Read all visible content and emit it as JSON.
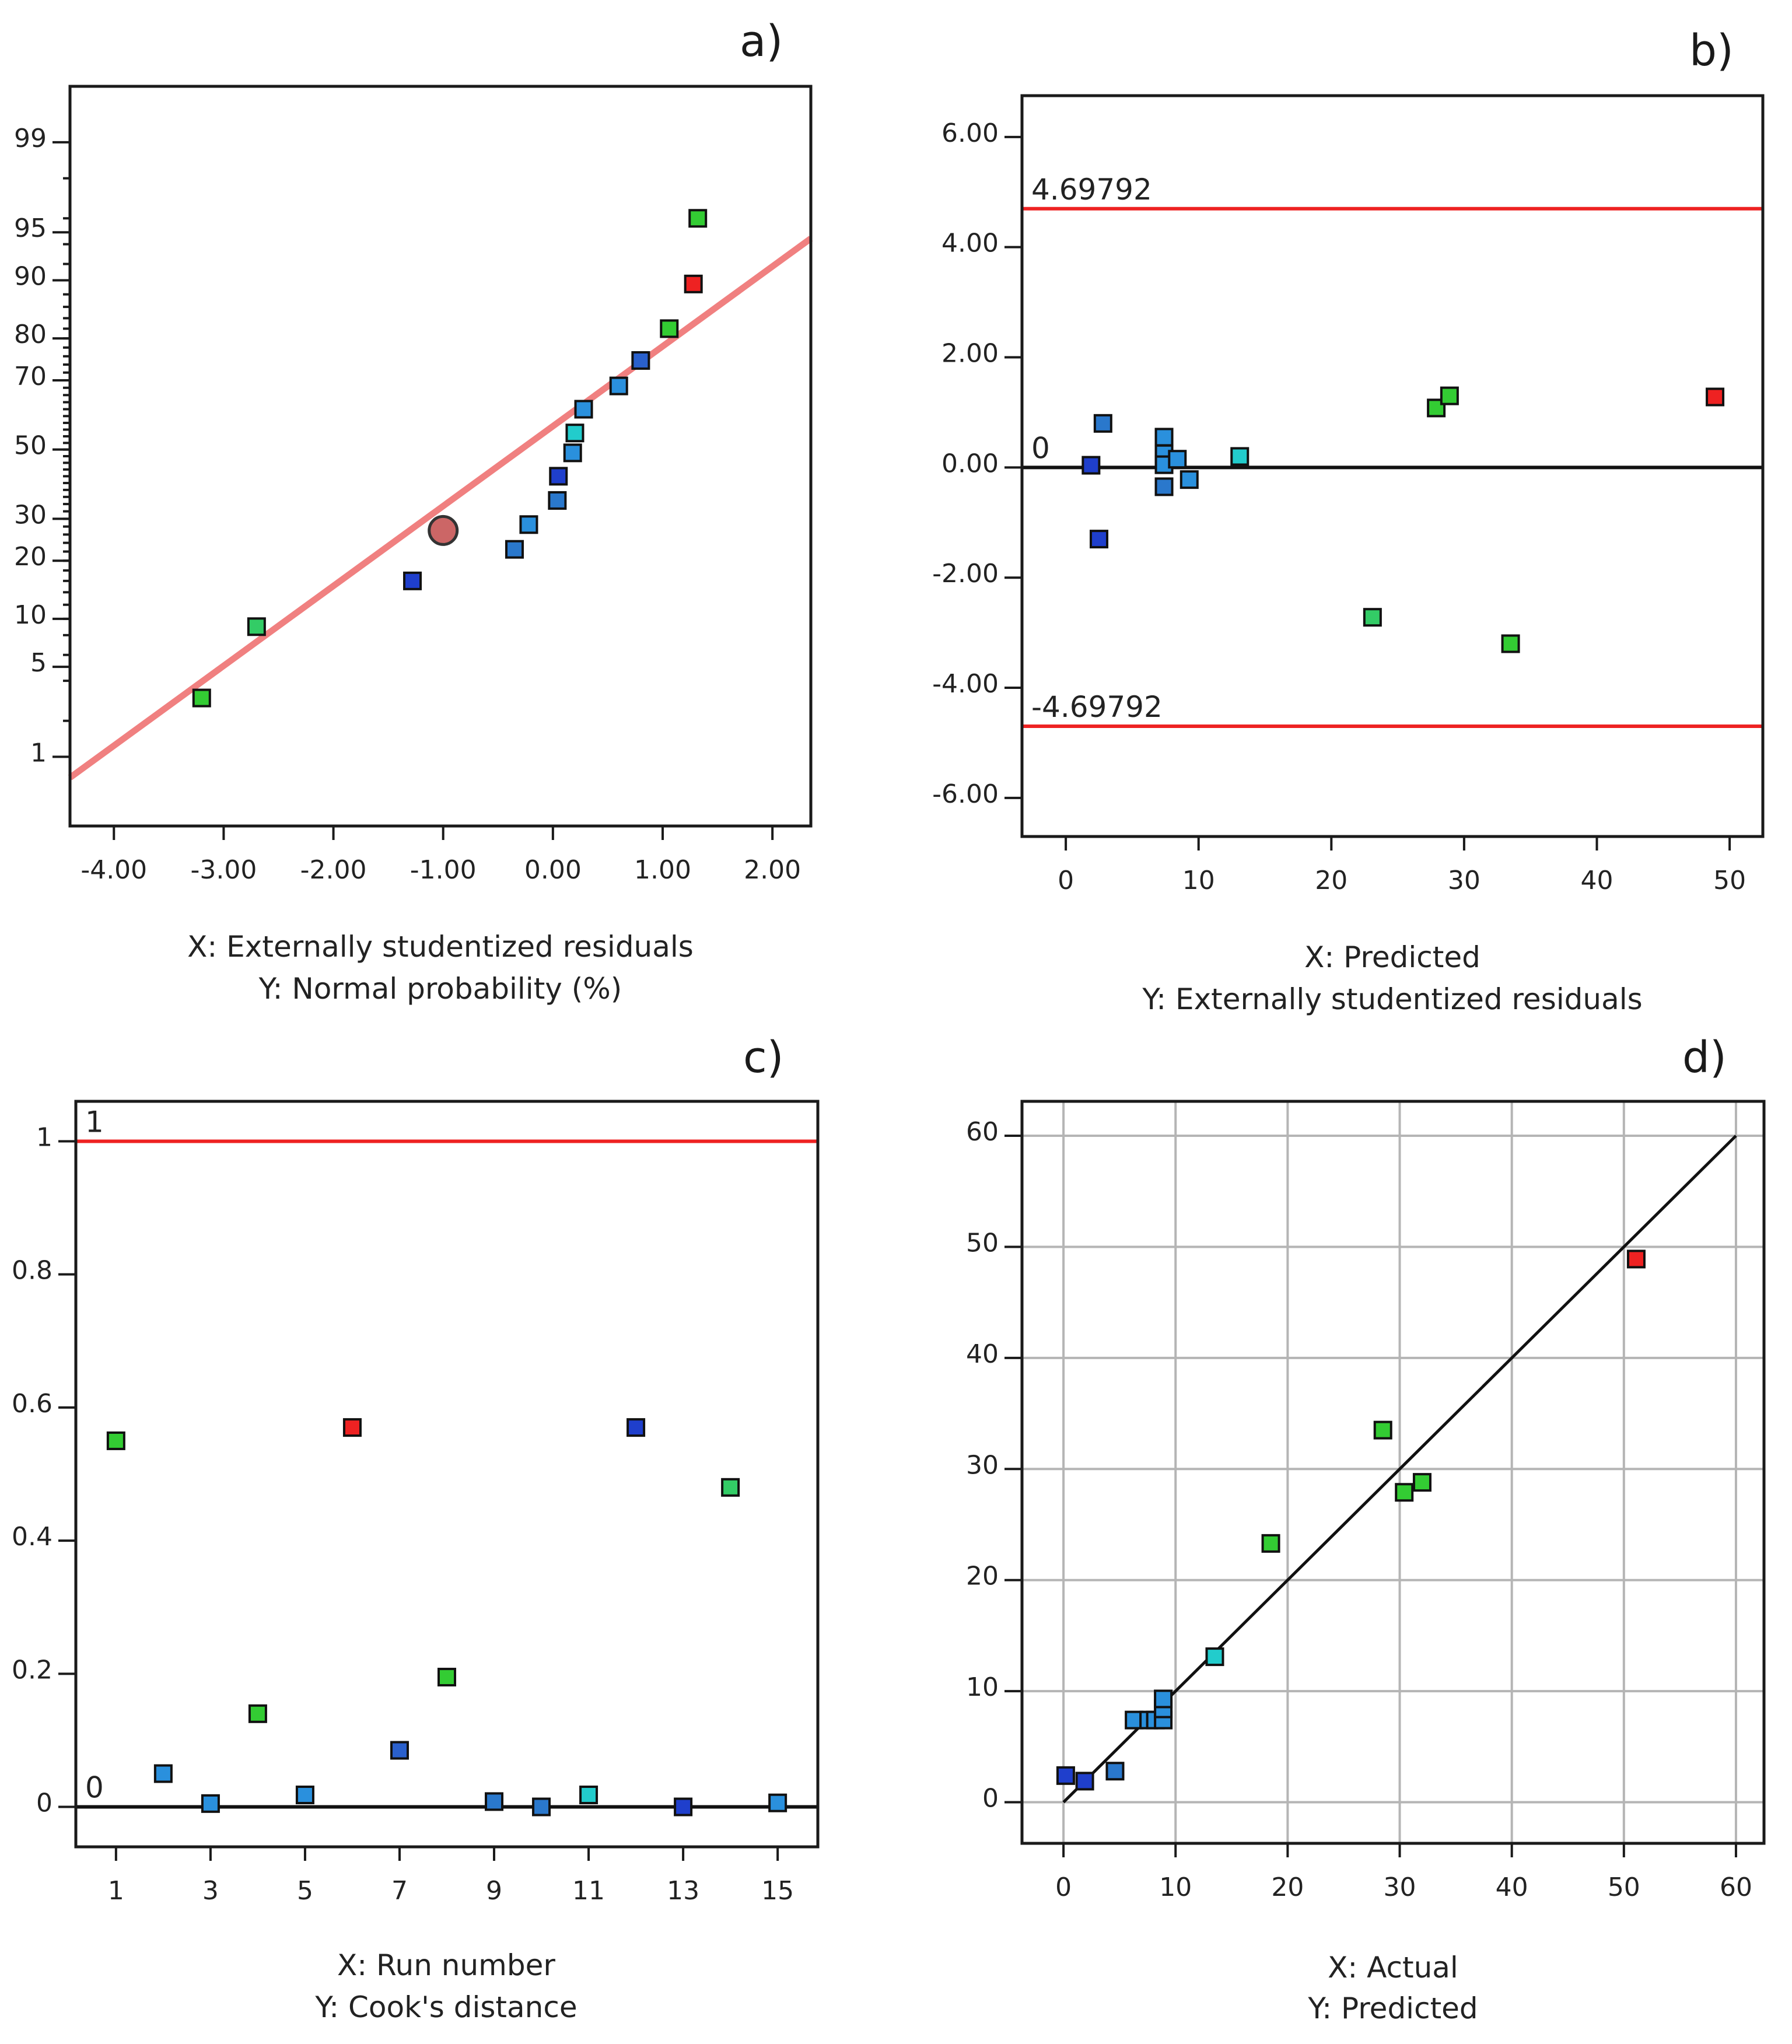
{
  "chart_data": [
    {
      "panel": "a)",
      "type": "scatter",
      "xlabel": "X: Externally studentized residuals",
      "ylabel": "Y: Normal probability (%)",
      "xlim": [
        -4.4,
        2.35
      ],
      "x_ticks": [
        "-4.00",
        "-3.00",
        "-2.00",
        "-1.00",
        "0.00",
        "1.00",
        "2.00"
      ],
      "y_ticks": [
        "1",
        "5",
        "10",
        "20",
        "30",
        "50",
        "70",
        "80",
        "90",
        "95",
        "99"
      ],
      "y_scale": "normal-probability",
      "fit_line": {
        "x": [
          -4.4,
          2.35
        ],
        "y": [
          0.65,
          94.5
        ],
        "color": "#f08080"
      },
      "highlight_point": {
        "x": -1.0,
        "y": 27,
        "color": "#cc6666"
      },
      "points": [
        {
          "x": -3.2,
          "y": 3,
          "color": "#33cc33"
        },
        {
          "x": -2.7,
          "y": 9,
          "color": "#33cc66"
        },
        {
          "x": -1.28,
          "y": 16,
          "color": "#1f3fcc"
        },
        {
          "x": -0.35,
          "y": 22.5,
          "color": "#2a78cc"
        },
        {
          "x": -0.22,
          "y": 28.5,
          "color": "#2a90dd"
        },
        {
          "x": 0.04,
          "y": 35,
          "color": "#2a78cc"
        },
        {
          "x": 0.05,
          "y": 42,
          "color": "#1f3fcc"
        },
        {
          "x": 0.18,
          "y": 49,
          "color": "#2a90dd"
        },
        {
          "x": 0.2,
          "y": 55,
          "color": "#22cccc"
        },
        {
          "x": 0.28,
          "y": 62,
          "color": "#2a90dd"
        },
        {
          "x": 0.6,
          "y": 68.5,
          "color": "#2a90dd"
        },
        {
          "x": 0.8,
          "y": 75,
          "color": "#2a60cc"
        },
        {
          "x": 1.06,
          "y": 82,
          "color": "#33cc33"
        },
        {
          "x": 1.28,
          "y": 89.5,
          "color": "#ee2222"
        },
        {
          "x": 1.32,
          "y": 96,
          "color": "#33cc33"
        }
      ]
    },
    {
      "panel": "b)",
      "type": "scatter",
      "xlabel": "X: Predicted",
      "ylabel": "Y: Externally studentized residuals",
      "xlim": [
        -3.3,
        52.5
      ],
      "ylim": [
        -6.7,
        6.75
      ],
      "x_ticks": [
        0,
        10,
        20,
        30,
        40,
        50
      ],
      "y_ticks": [
        "6.00",
        "4.00",
        "2.00",
        "0.00",
        "-2.00",
        "-4.00",
        "-6.00"
      ],
      "ref_lines": [
        {
          "y": 4.69792,
          "label": "4.69792",
          "color": "#ee2222"
        },
        {
          "y": -4.69792,
          "label": "-4.69792",
          "color": "#ee2222"
        },
        {
          "y": 0,
          "label": "0",
          "color": "#111111"
        }
      ],
      "points": [
        {
          "x": 1.9,
          "y": 0.04,
          "color": "#1f3fcc"
        },
        {
          "x": 2.5,
          "y": -1.3,
          "color": "#1f3fcc"
        },
        {
          "x": 2.8,
          "y": 0.8,
          "color": "#2a78cc"
        },
        {
          "x": 7.4,
          "y": 0.55,
          "color": "#2a90dd"
        },
        {
          "x": 7.4,
          "y": 0.25,
          "color": "#2a90dd"
        },
        {
          "x": 7.4,
          "y": 0.05,
          "color": "#2a90dd"
        },
        {
          "x": 7.4,
          "y": -0.35,
          "color": "#2a78cc"
        },
        {
          "x": 8.4,
          "y": 0.15,
          "color": "#2a90dd"
        },
        {
          "x": 9.3,
          "y": -0.22,
          "color": "#2a90dd"
        },
        {
          "x": 13.1,
          "y": 0.2,
          "color": "#22cccc"
        },
        {
          "x": 23.1,
          "y": -2.72,
          "color": "#33cc66"
        },
        {
          "x": 27.9,
          "y": 1.08,
          "color": "#33cc33"
        },
        {
          "x": 28.9,
          "y": 1.3,
          "color": "#33cc33"
        },
        {
          "x": 33.5,
          "y": -3.2,
          "color": "#33cc33"
        },
        {
          "x": 48.9,
          "y": 1.28,
          "color": "#ee2222"
        }
      ]
    },
    {
      "panel": "c)",
      "type": "scatter",
      "xlabel": "X: Run number",
      "ylabel": "Y: Cook's distance",
      "xlim": [
        0.15,
        15.85
      ],
      "ylim": [
        -0.06,
        1.06
      ],
      "x_ticks": [
        1,
        3,
        5,
        7,
        9,
        11,
        13,
        15
      ],
      "y_ticks": [
        "1",
        "0.8",
        "0.6",
        "0.4",
        "0.2",
        "0"
      ],
      "ref_lines": [
        {
          "y": 1,
          "label": "1",
          "color": "#ee2222"
        },
        {
          "y": 0,
          "label": "0",
          "color": "#111111"
        }
      ],
      "points": [
        {
          "x": 1,
          "y": 0.55,
          "color": "#33cc33"
        },
        {
          "x": 2,
          "y": 0.05,
          "color": "#2a90dd"
        },
        {
          "x": 3,
          "y": 0.005,
          "color": "#2a90dd"
        },
        {
          "x": 4,
          "y": 0.14,
          "color": "#33cc33"
        },
        {
          "x": 5,
          "y": 0.018,
          "color": "#2a90dd"
        },
        {
          "x": 6,
          "y": 0.57,
          "color": "#ee2222"
        },
        {
          "x": 7,
          "y": 0.085,
          "color": "#2a60cc"
        },
        {
          "x": 8,
          "y": 0.195,
          "color": "#33cc33"
        },
        {
          "x": 9,
          "y": 0.008,
          "color": "#2a78cc"
        },
        {
          "x": 10,
          "y": 0.0,
          "color": "#2a78cc"
        },
        {
          "x": 11,
          "y": 0.018,
          "color": "#22cccc"
        },
        {
          "x": 12,
          "y": 0.57,
          "color": "#1f3fcc"
        },
        {
          "x": 13,
          "y": 0.0,
          "color": "#1f3fcc"
        },
        {
          "x": 14,
          "y": 0.48,
          "color": "#33cc66"
        },
        {
          "x": 15,
          "y": 0.006,
          "color": "#2a90dd"
        }
      ]
    },
    {
      "panel": "d)",
      "type": "scatter",
      "xlabel": "X: Actual",
      "ylabel": "Y: Predicted",
      "xlim": [
        -3.7,
        62.5
      ],
      "ylim": [
        -3.7,
        63.1
      ],
      "x_ticks": [
        0,
        10,
        20,
        30,
        40,
        50,
        60
      ],
      "y_ticks": [
        60,
        50,
        40,
        30,
        20,
        10,
        0
      ],
      "grid": true,
      "fit_line": {
        "x": [
          0,
          60
        ],
        "y": [
          0,
          60
        ],
        "color": "#111111"
      },
      "points": [
        {
          "x": 0.2,
          "y": 2.4,
          "color": "#1f3fcc"
        },
        {
          "x": 1.9,
          "y": 1.9,
          "color": "#1f3fcc"
        },
        {
          "x": 4.6,
          "y": 2.8,
          "color": "#2a78cc"
        },
        {
          "x": 6.3,
          "y": 7.4,
          "color": "#2a90dd"
        },
        {
          "x": 7.6,
          "y": 7.4,
          "color": "#2a90dd"
        },
        {
          "x": 8.2,
          "y": 7.4,
          "color": "#2a90dd"
        },
        {
          "x": 8.9,
          "y": 7.4,
          "color": "#2a90dd"
        },
        {
          "x": 8.9,
          "y": 8.4,
          "color": "#2a90dd"
        },
        {
          "x": 8.9,
          "y": 9.3,
          "color": "#2a90dd"
        },
        {
          "x": 13.5,
          "y": 13.1,
          "color": "#22cccc"
        },
        {
          "x": 18.5,
          "y": 23.3,
          "color": "#33cc33"
        },
        {
          "x": 28.5,
          "y": 33.5,
          "color": "#33cc33"
        },
        {
          "x": 30.4,
          "y": 27.9,
          "color": "#33cc33"
        },
        {
          "x": 32.0,
          "y": 28.8,
          "color": "#33cc33"
        },
        {
          "x": 51.1,
          "y": 48.9,
          "color": "#ee2222"
        }
      ]
    }
  ]
}
